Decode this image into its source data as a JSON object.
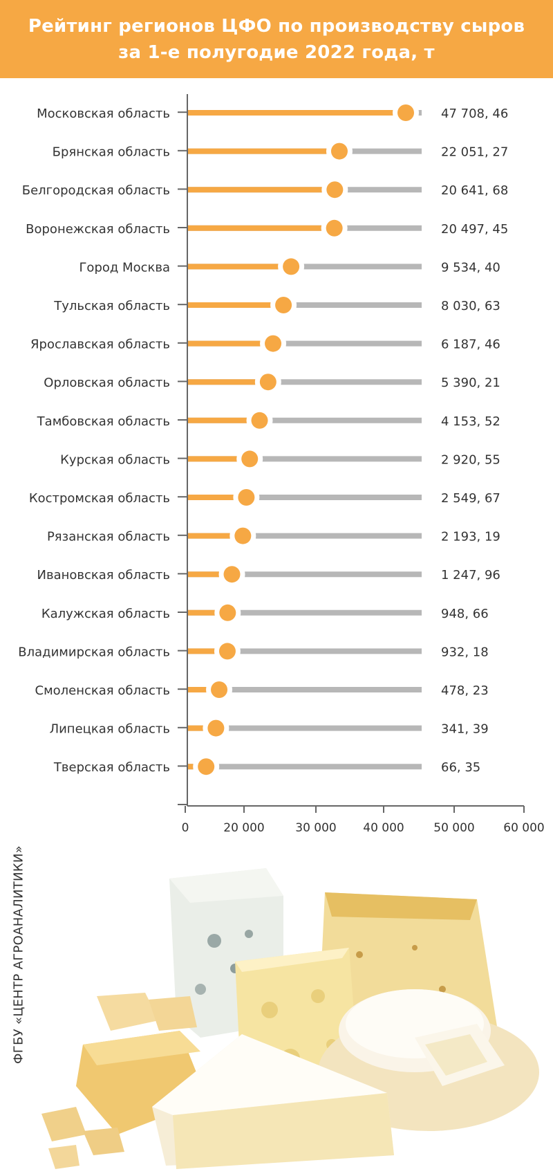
{
  "header": {
    "title_line1": "Рейтинг регионов ЦФО по производству сыров",
    "title_line2": "за 1-е полугодие 2022 года, т"
  },
  "source": "ФГБУ «ЦЕНТР АГРОАНАЛИТИКИ»",
  "colors": {
    "accent": "#f6a844",
    "track": "#b7b7b7",
    "axis": "#666666"
  },
  "chart_data": {
    "type": "bar",
    "title": "Рейтинг регионов ЦФО по производству сыров за 1-е полугодие 2022 года, т",
    "xlim": [
      0,
      60000
    ],
    "x_ticks": [
      "0",
      "20 000",
      "30 000",
      "40 000",
      "50 000",
      "60 000"
    ],
    "categories": [
      "Московская область",
      "Брянская область",
      "Белгородская область",
      "Воронежская область",
      "Город Москва",
      "Тульская область",
      "Ярославская область",
      "Орловская область",
      "Тамбовская область",
      "Курская область",
      "Костромская область",
      "Рязанская область",
      "Ивановская область",
      "Калужская область",
      "Владимирская область",
      "Смоленская область",
      "Липецкая область",
      "Тверская область"
    ],
    "values": [
      47708.46,
      22051.27,
      20641.68,
      20497.45,
      9534.4,
      8030.63,
      6187.46,
      5390.21,
      4153.52,
      2920.55,
      2549.67,
      2193.19,
      1247.96,
      948.66,
      932.18,
      478.23,
      341.39,
      66.35
    ],
    "value_labels": [
      "47 708, 46",
      "22 051, 27",
      "20 641, 68",
      "20 497, 45",
      "9 534, 40",
      "8 030, 63",
      "6 187, 46",
      "5 390, 21",
      "4 153, 52",
      "2 920, 55",
      "2 549, 67",
      "2 193, 19",
      "1 247, 96",
      "948, 66",
      "932, 18",
      "478, 23",
      "341, 39",
      "66, 35"
    ],
    "grid": false,
    "legend": "none"
  }
}
